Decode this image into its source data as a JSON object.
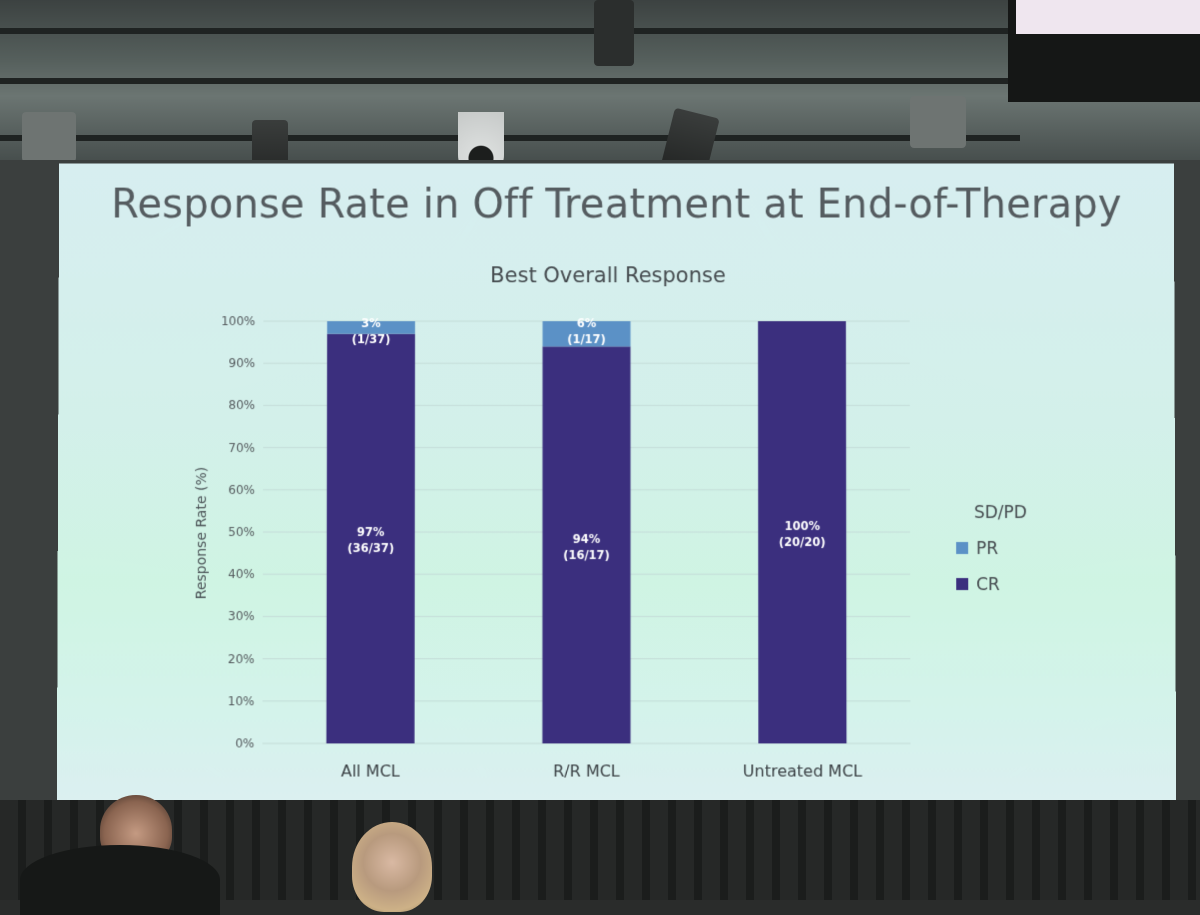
{
  "slide": {
    "title": "Response Rate in Off Treatment at End-of-Therapy"
  },
  "colors": {
    "cr": "#3b2f7e",
    "pr": "#5b91c6",
    "background_top": "#d7eef0",
    "background_bottom": "#cff4e3"
  },
  "chart_data": {
    "type": "bar",
    "stacked": true,
    "title": "Best Overall Response",
    "xlabel": "",
    "ylabel": "Response Rate (%)",
    "ylim": [
      0,
      100
    ],
    "yticks": [
      "0%",
      "10%",
      "20%",
      "30%",
      "40%",
      "50%",
      "60%",
      "70%",
      "80%",
      "90%",
      "100%"
    ],
    "grid": true,
    "legend_position": "right",
    "legend": [
      "SD/PD",
      "PR",
      "CR"
    ],
    "categories": [
      "All MCL",
      "R/R MCL",
      "Untreated MCL"
    ],
    "series": [
      {
        "name": "CR",
        "values": [
          97,
          94,
          100
        ],
        "labels": [
          [
            "97%",
            "(36/37)"
          ],
          [
            "94%",
            "(16/17)"
          ],
          [
            "100%",
            "(20/20)"
          ]
        ]
      },
      {
        "name": "PR",
        "values": [
          3,
          6,
          0
        ],
        "labels": [
          [
            "3%",
            "(1/37)"
          ],
          [
            "6%",
            "(1/17)"
          ],
          [
            "",
            ""
          ]
        ]
      },
      {
        "name": "SD/PD",
        "values": [
          0,
          0,
          0
        ],
        "labels": [
          [
            "",
            ""
          ],
          [
            "",
            ""
          ],
          [
            "",
            ""
          ]
        ]
      }
    ]
  }
}
